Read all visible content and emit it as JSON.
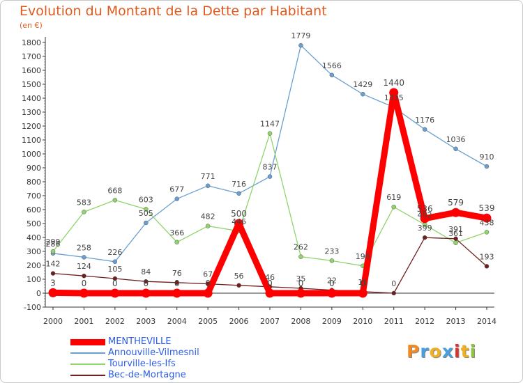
{
  "title": "Evolution du Montant de la Dette par Habitant",
  "subtitle": "(en €)",
  "logo": "Proxiti",
  "chart_data": {
    "type": "line",
    "title": "Evolution du Montant de la Dette par Habitant",
    "ylabel": "(en €)",
    "xlabel": "",
    "x": [
      "2000",
      "2001",
      "2002",
      "2003",
      "2004",
      "2005",
      "2006",
      "2007",
      "2008",
      "2009",
      "2010",
      "2011",
      "2012",
      "2013",
      "2014"
    ],
    "ylim": [
      -100,
      1800
    ],
    "yticks": [
      "-100",
      "0",
      "100",
      "200",
      "300",
      "400",
      "500",
      "600",
      "700",
      "800",
      "900",
      "1000",
      "1100",
      "1200",
      "1300",
      "1400",
      "1500",
      "1600",
      "1700",
      "1800"
    ],
    "grid": false,
    "legend_position": "bottom-left",
    "series": [
      {
        "name": "MENTHEVILLE",
        "color": "#ff0000",
        "values": [
          3,
          0,
          0,
          0,
          0,
          0,
          500,
          0,
          0,
          0,
          0,
          1440,
          536,
          579,
          539
        ],
        "labels": [
          "3",
          "0",
          "0",
          "0",
          "0",
          "0",
          "500",
          "0",
          "0",
          "0",
          "0",
          "1440",
          "536",
          "579",
          "539"
        ]
      },
      {
        "name": "Annouville-Vilmesnil",
        "color": "#6a9fd0",
        "values": [
          286,
          258,
          226,
          505,
          677,
          771,
          716,
          837,
          1779,
          1566,
          1429,
          1335,
          1176,
          1036,
          910
        ],
        "labels": [
          "286",
          "258",
          "226",
          "505",
          "677",
          "771",
          "716",
          "837",
          "1779",
          "1566",
          "1429",
          "1335",
          "1176",
          "1036",
          "910"
        ]
      },
      {
        "name": "Tourville-les-Ifs",
        "color": "#8fd46c",
        "values": [
          299,
          583,
          668,
          603,
          366,
          482,
          446,
          1147,
          262,
          233,
          196,
          619,
          492,
          361,
          438
        ],
        "labels": [
          "299",
          "583",
          "668",
          "603",
          "366",
          "482",
          "446",
          "1147",
          "262",
          "233",
          "196",
          "619",
          "492",
          "361",
          "438"
        ]
      },
      {
        "name": "Bec-de-Mortagne",
        "color": "#6e2020",
        "values": [
          142,
          124,
          105,
          84,
          76,
          67,
          56,
          46,
          35,
          22,
          11,
          0,
          399,
          391,
          193
        ],
        "labels": [
          "142",
          "124",
          "105",
          "84",
          "76",
          "67",
          "56",
          "46",
          "35",
          "22",
          "11",
          "0",
          "399",
          "391",
          "193"
        ]
      }
    ]
  }
}
